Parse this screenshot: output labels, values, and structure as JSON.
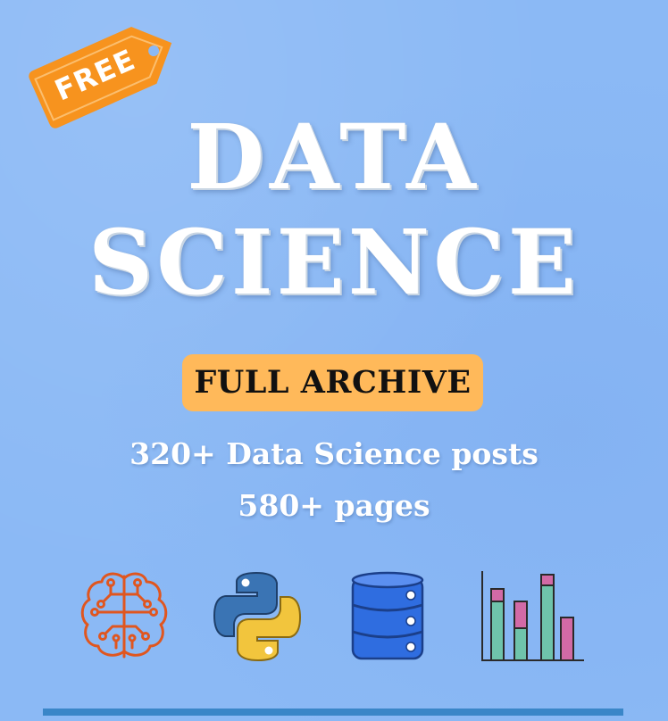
{
  "tag": {
    "label": "FREE",
    "color": "#f7931e"
  },
  "title": {
    "line1": "DATA",
    "line2": "SCIENCE"
  },
  "badge": {
    "label": "FULL ARCHIVE",
    "color": "#ffb95a"
  },
  "subtitle": {
    "line1": "320+ Data Science posts",
    "line2": "580+ pages"
  },
  "icons": [
    {
      "name": "brain-circuit-icon",
      "color": "#e0561f"
    },
    {
      "name": "python-logo-icon",
      "colors": [
        "#3a74b4",
        "#f2c53d"
      ]
    },
    {
      "name": "database-icon",
      "color": "#2f6de0"
    },
    {
      "name": "bar-chart-icon",
      "colors": [
        "#d26aa6",
        "#6fc4ab"
      ]
    }
  ],
  "background_color": "#8bb9f5"
}
